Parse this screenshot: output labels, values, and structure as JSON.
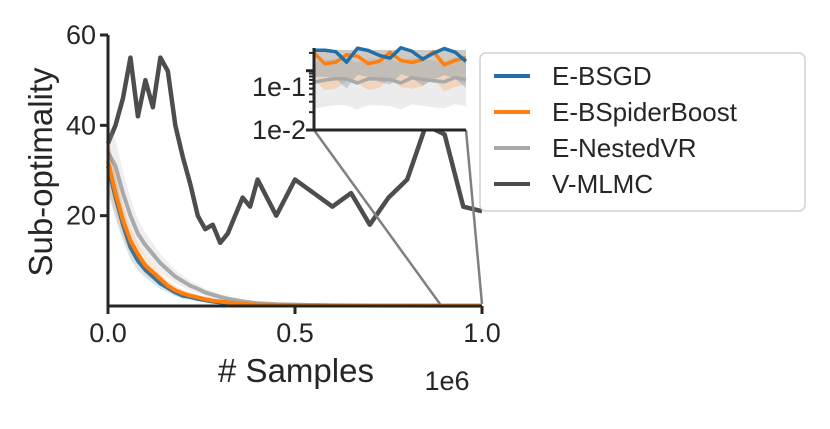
{
  "chart_data": {
    "type": "line",
    "title": "",
    "xlabel": "# Samples",
    "ylabel": "Sub-optimality",
    "x_offset_label": "1e6",
    "xlim": [
      0,
      1.0
    ],
    "ylim": [
      0,
      60
    ],
    "x_ticks": [
      "0.0",
      "0.5",
      "1.0"
    ],
    "y_ticks": [
      "20",
      "40",
      "60"
    ],
    "x": [
      0.0,
      0.02,
      0.04,
      0.06,
      0.08,
      0.1,
      0.12,
      0.14,
      0.16,
      0.18,
      0.2,
      0.22,
      0.24,
      0.26,
      0.28,
      0.3,
      0.32,
      0.34,
      0.36,
      0.38,
      0.4,
      0.45,
      0.5,
      0.55,
      0.6,
      0.65,
      0.7,
      0.75,
      0.8,
      0.85,
      0.9,
      0.95,
      1.0
    ],
    "series": [
      {
        "name": "E-BSGD",
        "color": "#1f6fa8",
        "values": [
          31.0,
          24.0,
          18.0,
          13.0,
          10.0,
          8.0,
          6.5,
          5.0,
          4.0,
          3.0,
          2.3,
          2.0,
          1.6,
          1.3,
          1.0,
          0.8,
          0.6,
          0.5,
          0.4,
          0.3,
          0.25,
          0.2,
          0.15,
          0.12,
          0.1,
          0.1,
          0.1,
          0.1,
          0.1,
          0.1,
          0.1,
          0.1,
          0.1
        ]
      },
      {
        "name": "E-BSpiderBoost",
        "color": "#ff7f0e",
        "values": [
          32.0,
          25.0,
          19.0,
          14.5,
          11.5,
          9.0,
          7.5,
          6.0,
          4.5,
          3.5,
          2.8,
          2.3,
          1.9,
          1.5,
          1.2,
          1.0,
          0.8,
          0.6,
          0.5,
          0.4,
          0.3,
          0.25,
          0.2,
          0.18,
          0.15,
          0.15,
          0.12,
          0.12,
          0.12,
          0.12,
          0.12,
          0.12,
          0.12
        ]
      },
      {
        "name": "E-NestedVR",
        "color": "#a9a9a9",
        "values": [
          34.0,
          31.0,
          25.0,
          20.0,
          16.0,
          13.5,
          11.5,
          9.5,
          8.0,
          6.5,
          5.5,
          4.5,
          3.8,
          3.0,
          2.5,
          2.0,
          1.6,
          1.3,
          1.0,
          0.8,
          0.6,
          0.4,
          0.3,
          0.2,
          0.15,
          0.12,
          0.1,
          0.08,
          0.07,
          0.06,
          0.06,
          0.05,
          0.05
        ]
      },
      {
        "name": "V-MLMC",
        "color": "#4d4d4d",
        "values": [
          36.0,
          40.0,
          46.0,
          55.0,
          42.0,
          50.0,
          44.0,
          55.0,
          52.0,
          40.0,
          33.0,
          27.0,
          20.0,
          17.0,
          18.0,
          14.0,
          16.0,
          20.0,
          24.0,
          22.0,
          28.0,
          20.0,
          28.0,
          25.0,
          22.0,
          25.0,
          18.0,
          24.0,
          28.0,
          40.0,
          38.0,
          22.0,
          21.0
        ]
      }
    ],
    "inset": {
      "yscale": "log",
      "y_ticks": [
        "1e-1",
        "1e-2"
      ],
      "xlim": [
        0.88,
        1.0
      ]
    },
    "legend_position": "right"
  }
}
